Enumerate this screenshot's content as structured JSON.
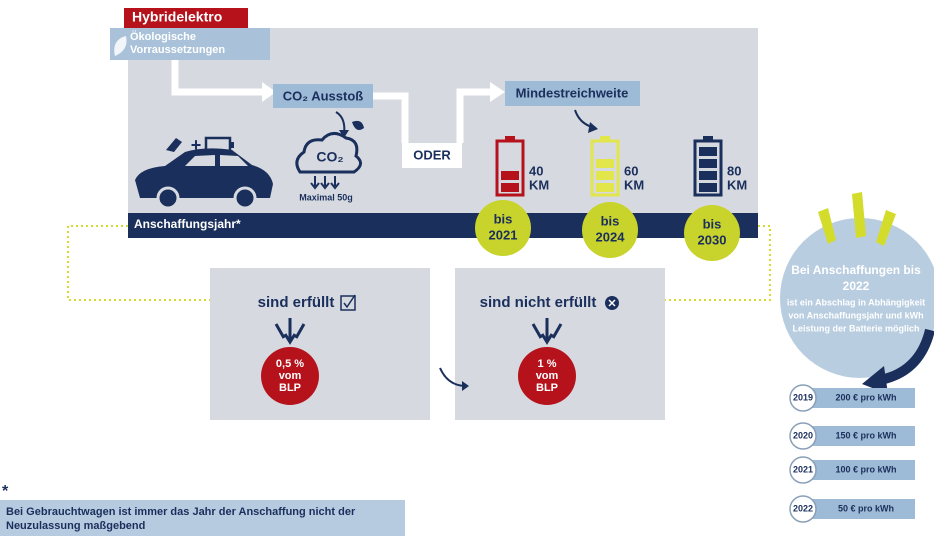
{
  "header": {
    "tag": "Hybridelektro",
    "subtitle_lines": [
      "Ökologische",
      "Vorraussetzungen"
    ]
  },
  "flow": {
    "co2_label": "CO₂ Ausstoß",
    "or": "ODER",
    "range_label": "Mindestreichweite",
    "co2_cloud": "CO₂",
    "co2_limit": "Maximal 50g"
  },
  "batteries": [
    {
      "km": "40",
      "unit": "KM",
      "until": "bis",
      "year": "2021"
    },
    {
      "km": "60",
      "unit": "KM",
      "until": "bis",
      "year": "2024"
    },
    {
      "km": "80",
      "unit": "KM",
      "until": "bis",
      "year": "2030"
    }
  ],
  "timeline_label": "Anschaffungsjahr*",
  "outcomes": [
    {
      "status": "sind erfüllt",
      "rate": "0,5 %",
      "of": "vom",
      "base": "BLP"
    },
    {
      "status": "sind nicht erfüllt",
      "rate": "1 %",
      "of": "vom",
      "base": "BLP"
    }
  ],
  "discount": {
    "title_lines": [
      "Bei Anschaffungen bis",
      "2022"
    ],
    "text_lines": [
      "ist ein Abschlag in Abhängigkeit",
      "von Anschaffungsjahr und kWh",
      "Leistung der Batterie möglich"
    ],
    "rows": [
      [
        "2019",
        "200 € pro kWh"
      ],
      [
        "2020",
        "150 € pro kWh"
      ],
      [
        "2021",
        "100 € pro kWh"
      ],
      [
        "2022",
        "50 € pro kWh"
      ]
    ]
  },
  "footnote": {
    "marker": "*",
    "lines": [
      "Bei Gebrauchtwagen ist immer das Jahr der Anschaffung nicht der",
      "Neuzulassung maßgebend"
    ]
  }
}
